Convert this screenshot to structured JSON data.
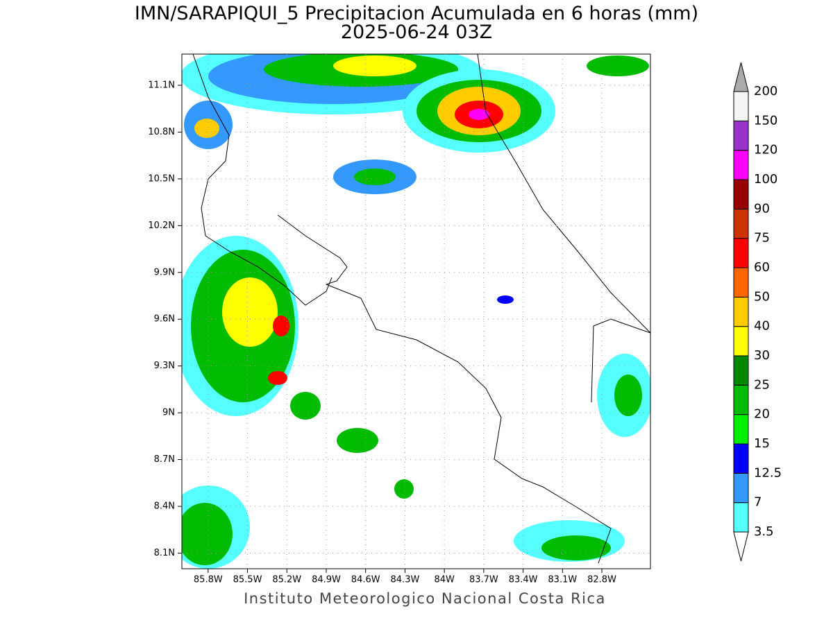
{
  "title": [
    "IMN/SARAPIQUI_5 Precipitacion Acumulada en 6 horas (mm)",
    "2025-06-24 03Z"
  ],
  "map": {
    "lat_range": [
      8.0,
      11.3
    ],
    "lon_range": [
      -86.0,
      -82.43
    ],
    "lat_ticks": [
      {
        "value": 11.1,
        "label": "11.1N"
      },
      {
        "value": 10.8,
        "label": "10.8N"
      },
      {
        "value": 10.5,
        "label": "10.5N"
      },
      {
        "value": 10.2,
        "label": "10.2N"
      },
      {
        "value": 9.9,
        "label": "9.9N"
      },
      {
        "value": 9.6,
        "label": "9.6N"
      },
      {
        "value": 9.3,
        "label": "9.3N"
      },
      {
        "value": 9,
        "label": "9N"
      },
      {
        "value": 8.7,
        "label": "8.7N"
      },
      {
        "value": 8.4,
        "label": "8.4N"
      },
      {
        "value": 8.1,
        "label": "8.1N"
      }
    ],
    "lon_ticks": [
      {
        "value": -85.8,
        "label": "85.8W"
      },
      {
        "value": -85.5,
        "label": "85.5W"
      },
      {
        "value": -85.2,
        "label": "85.2W"
      },
      {
        "value": -84.9,
        "label": "84.9W"
      },
      {
        "value": -84.6,
        "label": "84.6W"
      },
      {
        "value": -84.3,
        "label": "84.3W"
      },
      {
        "value": -84,
        "label": "84W"
      },
      {
        "value": -83.7,
        "label": "83.7W"
      },
      {
        "value": -83.4,
        "label": "83.4W"
      },
      {
        "value": -83.1,
        "label": "83.1W"
      },
      {
        "value": -82.8,
        "label": "82.8W"
      }
    ]
  },
  "colorbar": {
    "levels": [
      3.5,
      7,
      12.5,
      15,
      20,
      25,
      30,
      40,
      50,
      60,
      75,
      90,
      100,
      120,
      150,
      200
    ],
    "colors": [
      "#55ffff",
      "#3399ff",
      "#0000ff",
      "#00ee00",
      "#00bb00",
      "#008800",
      "#ffff00",
      "#ffcc00",
      "#ff6600",
      "#ff0000",
      "#cc3300",
      "#990000",
      "#ff00ff",
      "#9933cc",
      "#f5f5f5"
    ],
    "under_color": "#ffffff",
    "over_color": "#aaaaaa"
  },
  "footer": "Instituto Meteorologico Nacional Costa Rica"
}
